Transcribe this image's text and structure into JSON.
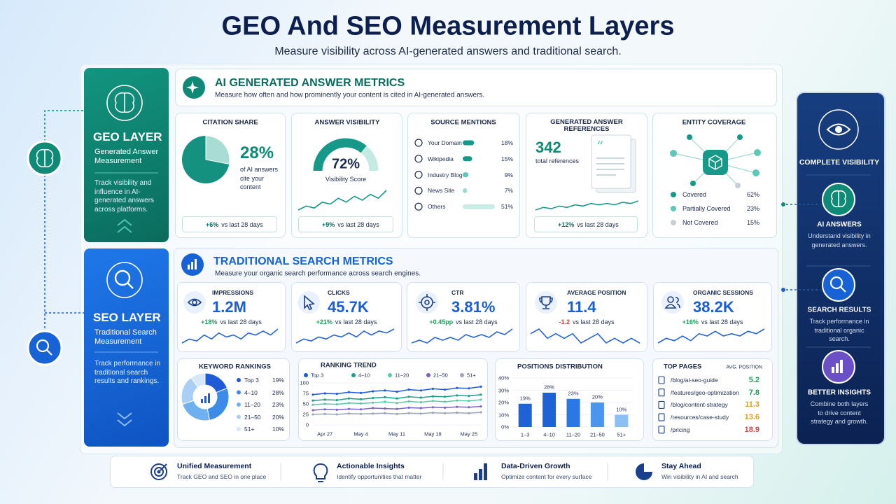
{
  "header": {
    "title": "GEO And SEO Measurement Layers",
    "subtitle": "Measure visibility across AI-generated answers and traditional search."
  },
  "geo_layer": {
    "title": "GEO LAYER",
    "subtitle": "Generated Answer Measurement",
    "description": "Track visibility and influence in AI-generated answers across platforms."
  },
  "seo_layer": {
    "title": "SEO LAYER",
    "subtitle": "Traditional Search Measurement",
    "description": "Track performance in traditional search results and rankings."
  },
  "ai_metrics": {
    "title": "AI GENERATED ANSWER METRICS",
    "subtitle": "Measure how often and how prominently your content is cited in AI-generated answers.",
    "citation_share": {
      "title": "CITATION SHARE",
      "value": 28,
      "value_label": "28%",
      "caption": "of AI answers cite your content",
      "change": "+6%",
      "change_note": "vs last 28 days"
    },
    "answer_visibility": {
      "title": "ANSWER VISIBILITY",
      "value": 72,
      "value_label": "72%",
      "caption": "Visibility Score",
      "trend": [
        3,
        5,
        4,
        7,
        6,
        9,
        7,
        10,
        8,
        11,
        9,
        13
      ],
      "change": "+9%",
      "change_note": "vs last 28 days"
    },
    "source_mentions": {
      "title": "SOURCE MENTIONS",
      "rows": [
        {
          "label": "Your Domain",
          "value": 18,
          "value_label": "18%",
          "color": "#17998a"
        },
        {
          "label": "Wikipedia",
          "value": 15,
          "value_label": "15%",
          "color": "#17998a"
        },
        {
          "label": "Industry Blog",
          "value": 9,
          "value_label": "9%",
          "color": "#5cc8b5"
        },
        {
          "label": "News Site",
          "value": 7,
          "value_label": "7%",
          "color": "#9fdcd0"
        },
        {
          "label": "Others",
          "value": 51,
          "value_label": "51%",
          "color": "#c9ece5"
        }
      ]
    },
    "answer_references": {
      "title": "GENERATED ANSWER REFERENCES",
      "value": 342,
      "caption": "total references",
      "trend": [
        4,
        6,
        5,
        7,
        6,
        8,
        7,
        9,
        8,
        9,
        8,
        10,
        9,
        11
      ],
      "change": "+12%",
      "change_note": "vs last 28 days"
    },
    "entity_coverage": {
      "title": "ENTITY COVERAGE",
      "rows": [
        {
          "label": "Covered",
          "value_label": "62%",
          "color": "#17998a"
        },
        {
          "label": "Partially Covered",
          "value_label": "23%",
          "color": "#5cc8b5"
        },
        {
          "label": "Not Covered",
          "value_label": "15%",
          "color": "#c9ced6"
        }
      ]
    }
  },
  "search_metrics": {
    "title": "TRADITIONAL SEARCH METRICS",
    "subtitle": "Measure your organic search performance across search engines.",
    "cards": [
      {
        "title": "IMPRESSIONS",
        "value": "1.2M",
        "change": "+18%",
        "change_note": "vs last 28 days",
        "change_color": "#1a9e5a",
        "trend": [
          4,
          6,
          5,
          8,
          6,
          9,
          7,
          8,
          6,
          9,
          8,
          10,
          8,
          11
        ]
      },
      {
        "title": "CLICKS",
        "value": "45.7K",
        "change": "+21%",
        "change_note": "vs last 28 days",
        "change_color": "#1a9e5a",
        "trend": [
          3,
          5,
          4,
          6,
          5,
          7,
          6,
          8,
          6,
          9,
          7,
          9,
          8,
          10
        ]
      },
      {
        "title": "CTR",
        "value": "3.81%",
        "change": "+0.45pp",
        "change_note": "vs last 28 days",
        "change_color": "#1a9e5a",
        "trend": [
          4,
          5,
          4,
          6,
          5,
          6,
          5,
          7,
          6,
          7,
          6,
          8,
          7,
          9
        ]
      },
      {
        "title": "AVERAGE POSITION",
        "value": "11.4",
        "change": "-1.2",
        "change_note": "vs last 28 days",
        "change_color": "#d64545",
        "trend": [
          7,
          8,
          6,
          7,
          6,
          7,
          5,
          6,
          7,
          5,
          6,
          5,
          6,
          5
        ]
      },
      {
        "title": "ORGANIC SESSIONS",
        "value": "38.2K",
        "change": "+16%",
        "change_note": "vs last 28 days",
        "change_color": "#1a9e5a",
        "trend": [
          4,
          6,
          5,
          7,
          5,
          8,
          7,
          9,
          7,
          8,
          7,
          9,
          8,
          10
        ]
      }
    ],
    "keyword_rankings": {
      "title": "KEYWORD RANKINGS",
      "categories": [
        "Top 3",
        "4–10",
        "11–20",
        "21–50",
        "51+"
      ],
      "values": [
        19,
        28,
        23,
        20,
        10
      ],
      "value_labels": [
        "19%",
        "28%",
        "23%",
        "20%",
        "10%"
      ],
      "colors": [
        "#1f5bd6",
        "#3d8be8",
        "#6fb0f0",
        "#a9cff7",
        "#d6e7fb"
      ]
    },
    "ranking_trend": {
      "title": "RANKING TREND",
      "ylim": [
        0,
        100
      ],
      "yticks": [
        0,
        25,
        50,
        75,
        100
      ],
      "categories": [
        null,
        "Apr 27",
        null,
        null,
        "May 4",
        null,
        null,
        "May 11",
        null,
        null,
        "May 18",
        null,
        null,
        "May 25",
        null
      ],
      "series": [
        {
          "name": "Top 3",
          "color": "#1f5bd6",
          "values": [
            72,
            75,
            74,
            78,
            76,
            80,
            82,
            79,
            84,
            82,
            86,
            84,
            88,
            87,
            91
          ]
        },
        {
          "name": "4–10",
          "color": "#17a08a",
          "values": [
            58,
            60,
            59,
            63,
            61,
            64,
            66,
            63,
            67,
            65,
            68,
            67,
            70,
            69,
            72
          ]
        },
        {
          "name": "11–20",
          "color": "#5cc8a5",
          "values": [
            48,
            50,
            49,
            52,
            51,
            53,
            55,
            52,
            56,
            54,
            57,
            55,
            58,
            57,
            60
          ]
        },
        {
          "name": "21–50",
          "color": "#7b61c9",
          "values": [
            35,
            37,
            36,
            38,
            37,
            40,
            39,
            38,
            41,
            40,
            42,
            41,
            43,
            42,
            44
          ]
        },
        {
          "name": "51+",
          "color": "#9aa6b8",
          "values": [
            25,
            26,
            25,
            27,
            26,
            27,
            28,
            26,
            28,
            27,
            29,
            28,
            29,
            28,
            30
          ]
        }
      ]
    },
    "positions_distribution": {
      "title": "POSITIONS DISTRIBUTION",
      "categories": [
        "1–3",
        "4–10",
        "11–20",
        "21–50",
        "51+"
      ],
      "values": [
        19,
        28,
        23,
        20,
        10
      ],
      "value_labels": [
        "19%",
        "28%",
        "23%",
        "20%",
        "10%"
      ],
      "colors": [
        "#1e63d6",
        "#1e63d6",
        "#2a78e4",
        "#4a95ee",
        "#8cc0f5"
      ],
      "ylim": [
        0,
        40
      ],
      "yticks": [
        {
          "value": 0,
          "label": "0%"
        },
        {
          "value": 10,
          "label": "10%"
        },
        {
          "value": 20,
          "label": "20%"
        },
        {
          "value": 30,
          "label": "30%"
        },
        {
          "value": 40,
          "label": "40%"
        }
      ]
    },
    "top_pages": {
      "title": "TOP PAGES",
      "column_label": "AVG. POSITION",
      "rows": [
        {
          "page": "/blog/ai-seo-guide",
          "value": 5.2,
          "color": "#1a9e5a"
        },
        {
          "page": "/features/geo-optimization",
          "value": 7.8,
          "color": "#1a9e5a"
        },
        {
          "page": "/blog/content-strategy",
          "value": 11.3,
          "color": "#e89a1c"
        },
        {
          "page": "/resources/case-study",
          "value": 13.6,
          "color": "#e89a1c"
        },
        {
          "page": "/pricing",
          "value": 18.9,
          "color": "#d64545"
        }
      ]
    }
  },
  "sidebar": {
    "title": "COMPLETE VISIBILITY",
    "items": [
      {
        "title": "AI ANSWERS",
        "description": "Understand visibility in generated answers."
      },
      {
        "title": "SEARCH RESULTS",
        "description": "Track performance in traditional organic search."
      },
      {
        "title": "BETTER INSIGHTS",
        "description": "Combine both layers to drive content strategy and growth."
      }
    ]
  },
  "footer": {
    "items": [
      {
        "title": "Unified Measurement",
        "description": "Track GEO and SEO in one place"
      },
      {
        "title": "Actionable Insights",
        "description": "Identify opportunities that matter"
      },
      {
        "title": "Data-Driven Growth",
        "description": "Optimize content for every surface"
      },
      {
        "title": "Stay Ahead",
        "description": "Win visibility in AI and search"
      }
    ]
  }
}
